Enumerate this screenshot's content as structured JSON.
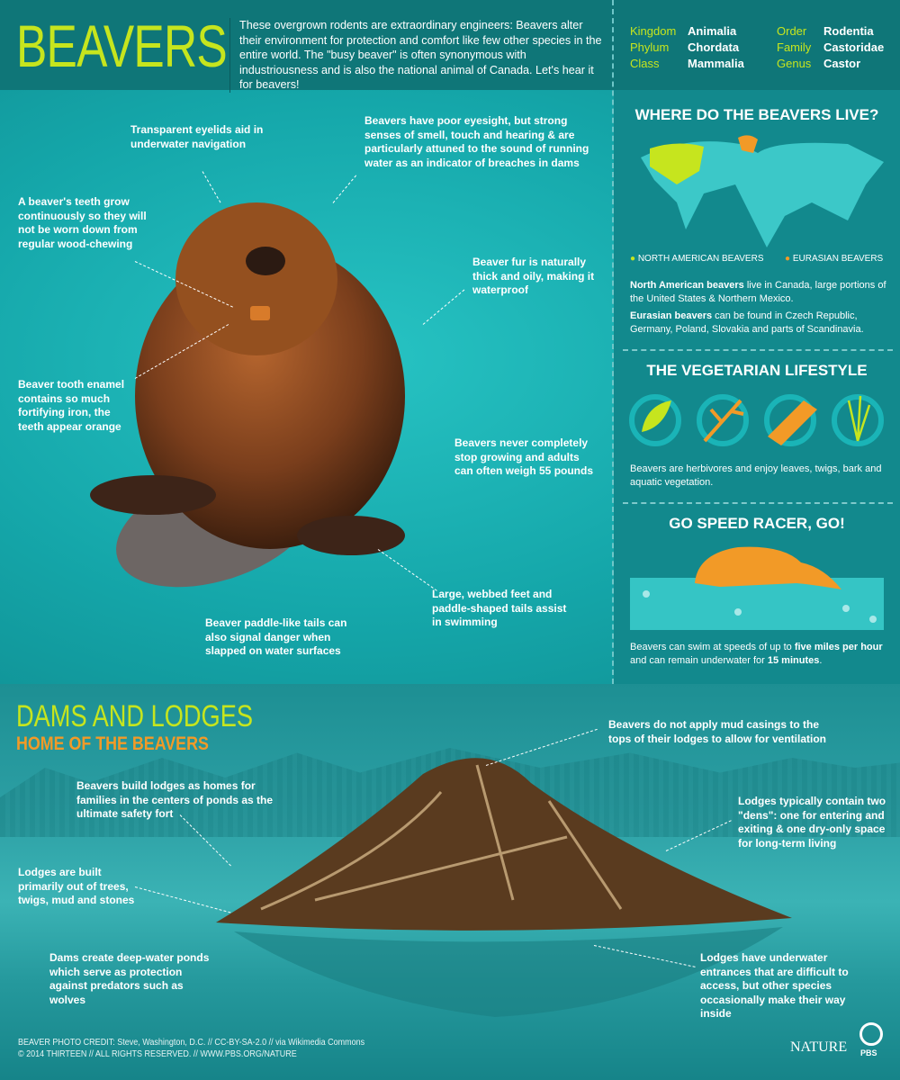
{
  "header": {
    "title": "BEAVERS",
    "intro": "These overgrown rodents are extraordinary engineers: Beavers alter their environment for protection and comfort like few other species in the entire world. The \"busy beaver\" is often synonymous with industriousness and is also the national animal of Canada. Let's hear it for beavers!",
    "taxonomy": [
      {
        "key": "Kingdom",
        "value": "Animalia"
      },
      {
        "key": "Order",
        "value": "Rodentia"
      },
      {
        "key": "Phylum",
        "value": "Chordata"
      },
      {
        "key": "Family",
        "value": "Castoridae"
      },
      {
        "key": "Class",
        "value": "Mammalia"
      },
      {
        "key": "Genus",
        "value": "Castor"
      }
    ]
  },
  "anatomy": [
    "Transparent eyelids aid in underwater navigation",
    "Beavers have poor eyesight, but strong senses of smell, touch and hearing & are particularly attuned to the sound of running water as an indicator of breaches in dams",
    "A beaver's teeth grow continuously so they will not be worn down from regular wood-chewing",
    "Beaver fur is naturally thick and oily, making it waterproof",
    "Beaver tooth enamel contains so much fortifying iron, the teeth appear orange",
    "Beavers never completely stop growing and adults can often weigh 55 pounds",
    "Large, webbed feet and paddle-shaped tails assist in swimming",
    "Beaver paddle-like tails can also signal danger when slapped on water surfaces"
  ],
  "habitat": {
    "title": "WHERE DO THE BEAVERS LIVE?",
    "legend": [
      {
        "label": "NORTH AMERICAN BEAVERS",
        "color": "#c6e51e"
      },
      {
        "label": "EURASIAN BEAVERS",
        "color": "#f29a27"
      }
    ],
    "na_bold": "North American beavers",
    "na_text": " live in Canada, large portions of the United States & Northern Mexico.",
    "eu_bold": "Eurasian beavers",
    "eu_text": " can be found in Czech Republic, Germany, Poland, Slovakia and parts of Scandinavia."
  },
  "diet": {
    "title": "THE VEGETARIAN LIFESTYLE",
    "icons": [
      "leaf-icon",
      "twig-icon",
      "bark-icon",
      "aquatic-plant-icon"
    ],
    "text": "Beavers are herbivores and enjoy leaves, twigs, bark and aquatic vegetation."
  },
  "speed": {
    "title": "GO SPEED RACER, GO!",
    "t1": "Beavers can swim at speeds of up to ",
    "b1": "five miles per hour",
    "t2": " and can remain underwater for ",
    "b2": "15 minutes",
    "t3": "."
  },
  "lodges": {
    "title": "DAMS AND LODGES",
    "subtitle": "HOME OF THE BEAVERS",
    "notes": [
      "Beavers do not apply mud casings to the tops of their lodges to allow for ventilation",
      "Beavers build lodges as homes for families in the centers of ponds as the ultimate safety fort",
      "Lodges typically contain two \"dens\": one for entering and exiting & one dry-only space for long-term living",
      "Lodges are built primarily out of trees, twigs, mud and stones",
      "Dams create deep-water ponds which serve as protection against predators such as wolves",
      "Lodges have underwater entrances that are difficult to access, but other species occasionally make their way inside"
    ]
  },
  "footer": {
    "credit1": "BEAVER PHOTO CREDIT: Steve, Washington, D.C.  //  CC-BY-SA-2.0  //  via Wikimedia Commons",
    "credit2": "© 2014 THIRTEEN  //  ALL RIGHTS RESERVED.  //  WWW.PBS.ORG/NATURE",
    "logo1": "NATURE",
    "logo2": "PBS"
  },
  "colors": {
    "accent_green": "#c6e51e",
    "accent_orange": "#f29a27",
    "header_bg": "#0f7678",
    "main_bg": "#14a7aa"
  }
}
